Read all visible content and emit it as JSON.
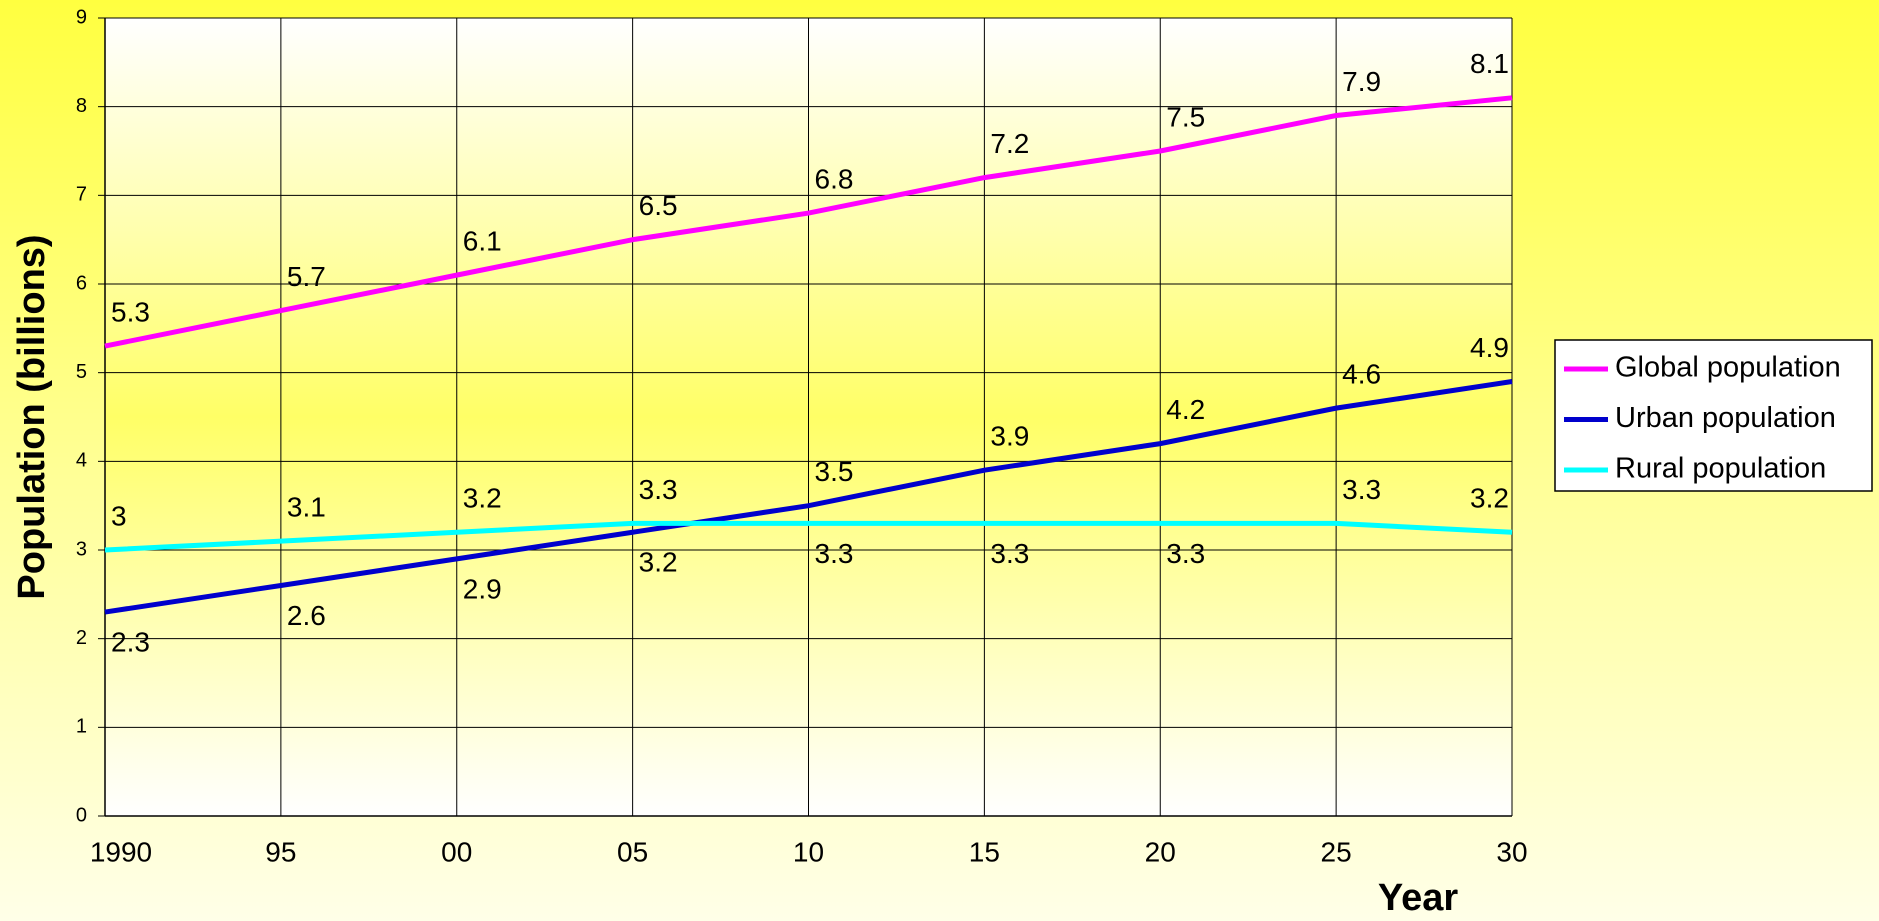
{
  "chart_data": {
    "type": "line",
    "y_label": "Population (billions)",
    "x_label": "Year",
    "categories": [
      "1990",
      "95",
      "00",
      "05",
      "10",
      "15",
      "20",
      "25",
      "30"
    ],
    "series": [
      {
        "name": "Global population",
        "color": "#ff00ff",
        "values": [
          5.3,
          5.7,
          6.1,
          6.5,
          6.8,
          7.2,
          7.5,
          7.9,
          8.1
        ]
      },
      {
        "name": "Urban population",
        "color": "#0000cc",
        "values": [
          2.3,
          2.6,
          2.9,
          3.2,
          3.5,
          3.9,
          4.2,
          4.6,
          4.9
        ]
      },
      {
        "name": "Rural population",
        "color": "#00ffff",
        "values": [
          3,
          3.1,
          3.2,
          3.3,
          3.3,
          3.3,
          3.3,
          3.3,
          3.2
        ]
      }
    ],
    "ylim": [
      0,
      9
    ],
    "yticks": [
      0,
      1,
      2,
      3,
      4,
      5,
      6,
      7,
      8,
      9
    ],
    "grid": true,
    "legend": "right"
  }
}
